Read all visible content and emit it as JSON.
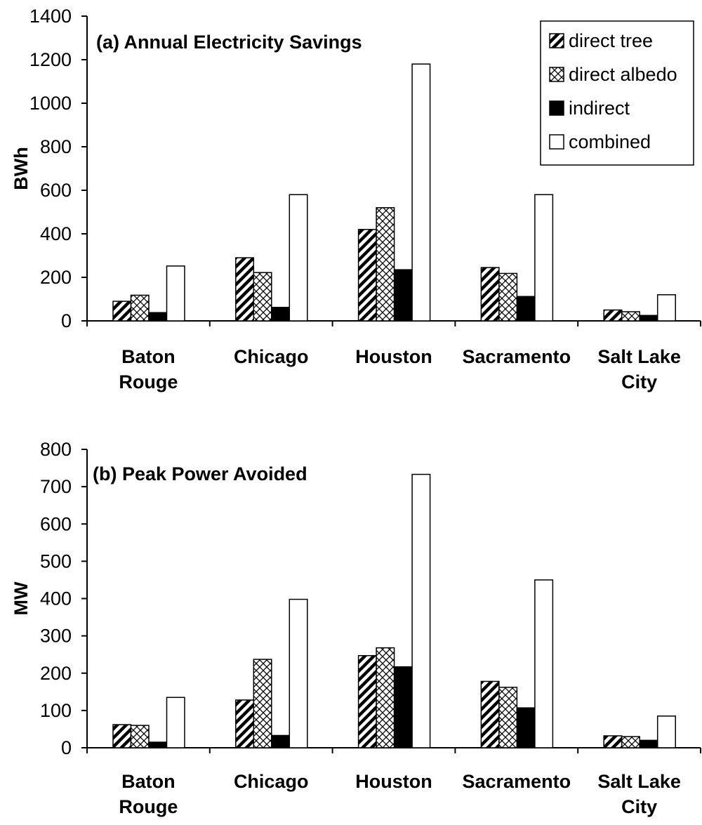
{
  "chart_data": [
    {
      "type": "bar",
      "title": "(a) Annual Electricity Savings",
      "ylabel": "BWh",
      "xlabel": "",
      "ylim": [
        0,
        1400
      ],
      "yticks": [
        "0",
        "200",
        "400",
        "600",
        "800",
        "1000",
        "1200",
        "1400"
      ],
      "categories": [
        [
          "Baton",
          "Rouge"
        ],
        [
          "Chicago"
        ],
        [
          "Houston"
        ],
        [
          "Sacramento"
        ],
        [
          "Salt Lake",
          "City"
        ]
      ],
      "legend_position": "top-right",
      "series": [
        {
          "name": "direct tree",
          "pattern": "diagonal-hatch",
          "values": [
            90,
            290,
            420,
            245,
            50
          ]
        },
        {
          "name": "direct albedo",
          "pattern": "cross-hatch",
          "values": [
            118,
            222,
            520,
            218,
            42
          ]
        },
        {
          "name": "indirect",
          "pattern": "solid-black",
          "values": [
            38,
            62,
            235,
            112,
            25
          ]
        },
        {
          "name": "combined",
          "pattern": "white",
          "values": [
            252,
            580,
            1180,
            580,
            120
          ]
        }
      ]
    },
    {
      "type": "bar",
      "title": "(b) Peak Power Avoided",
      "ylabel": "MW",
      "xlabel": "",
      "ylim": [
        0,
        800
      ],
      "yticks": [
        "0",
        "100",
        "200",
        "300",
        "400",
        "500",
        "600",
        "700",
        "800"
      ],
      "categories": [
        [
          "Baton",
          "Rouge"
        ],
        [
          "Chicago"
        ],
        [
          "Houston"
        ],
        [
          "Sacramento"
        ],
        [
          "Salt Lake",
          "City"
        ]
      ],
      "series": [
        {
          "name": "direct tree",
          "pattern": "diagonal-hatch",
          "values": [
            62,
            128,
            247,
            178,
            32
          ]
        },
        {
          "name": "direct albedo",
          "pattern": "cross-hatch",
          "values": [
            60,
            237,
            268,
            162,
            30
          ]
        },
        {
          "name": "indirect",
          "pattern": "solid-black",
          "values": [
            15,
            33,
            217,
            107,
            20
          ]
        },
        {
          "name": "combined",
          "pattern": "white",
          "values": [
            135,
            398,
            733,
            450,
            85
          ]
        }
      ]
    }
  ]
}
